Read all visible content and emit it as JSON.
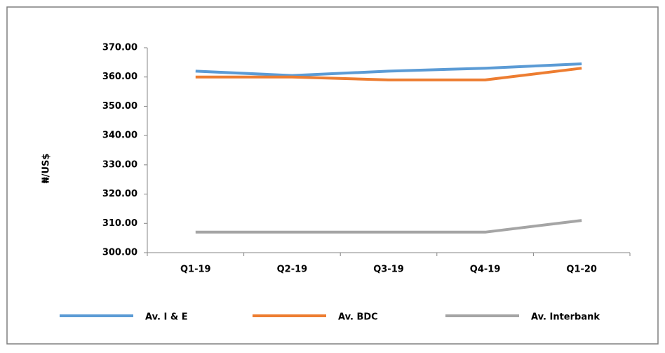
{
  "chart_data": {
    "type": "line",
    "y_label": "₦/US$",
    "categories": [
      "Q1-19",
      "Q2-19",
      "Q3-19",
      "Q4-19",
      "Q1-20"
    ],
    "series": [
      {
        "name": "Av. I & E",
        "color": "#5b9bd5",
        "values": [
          362,
          360.5,
          362,
          363,
          364.5
        ]
      },
      {
        "name": "Av. BDC",
        "color": "#ed7d31",
        "values": [
          360,
          360,
          359,
          359,
          363
        ]
      },
      {
        "name": "Av. Interbank",
        "color": "#a5a5a5",
        "values": [
          307,
          307,
          307,
          307,
          311
        ]
      }
    ],
    "ylim": [
      300,
      370
    ],
    "yticks": [
      {
        "value": 300,
        "label": "300.00"
      },
      {
        "value": 310,
        "label": "310.00"
      },
      {
        "value": 320,
        "label": "320.00"
      },
      {
        "value": 330,
        "label": "330.00"
      },
      {
        "value": 340,
        "label": "340.00"
      },
      {
        "value": 350,
        "label": "350.00"
      },
      {
        "value": 360,
        "label": "360.00"
      },
      {
        "value": 370,
        "label": "370.00"
      }
    ],
    "grid": false,
    "legend": "bottom"
  }
}
